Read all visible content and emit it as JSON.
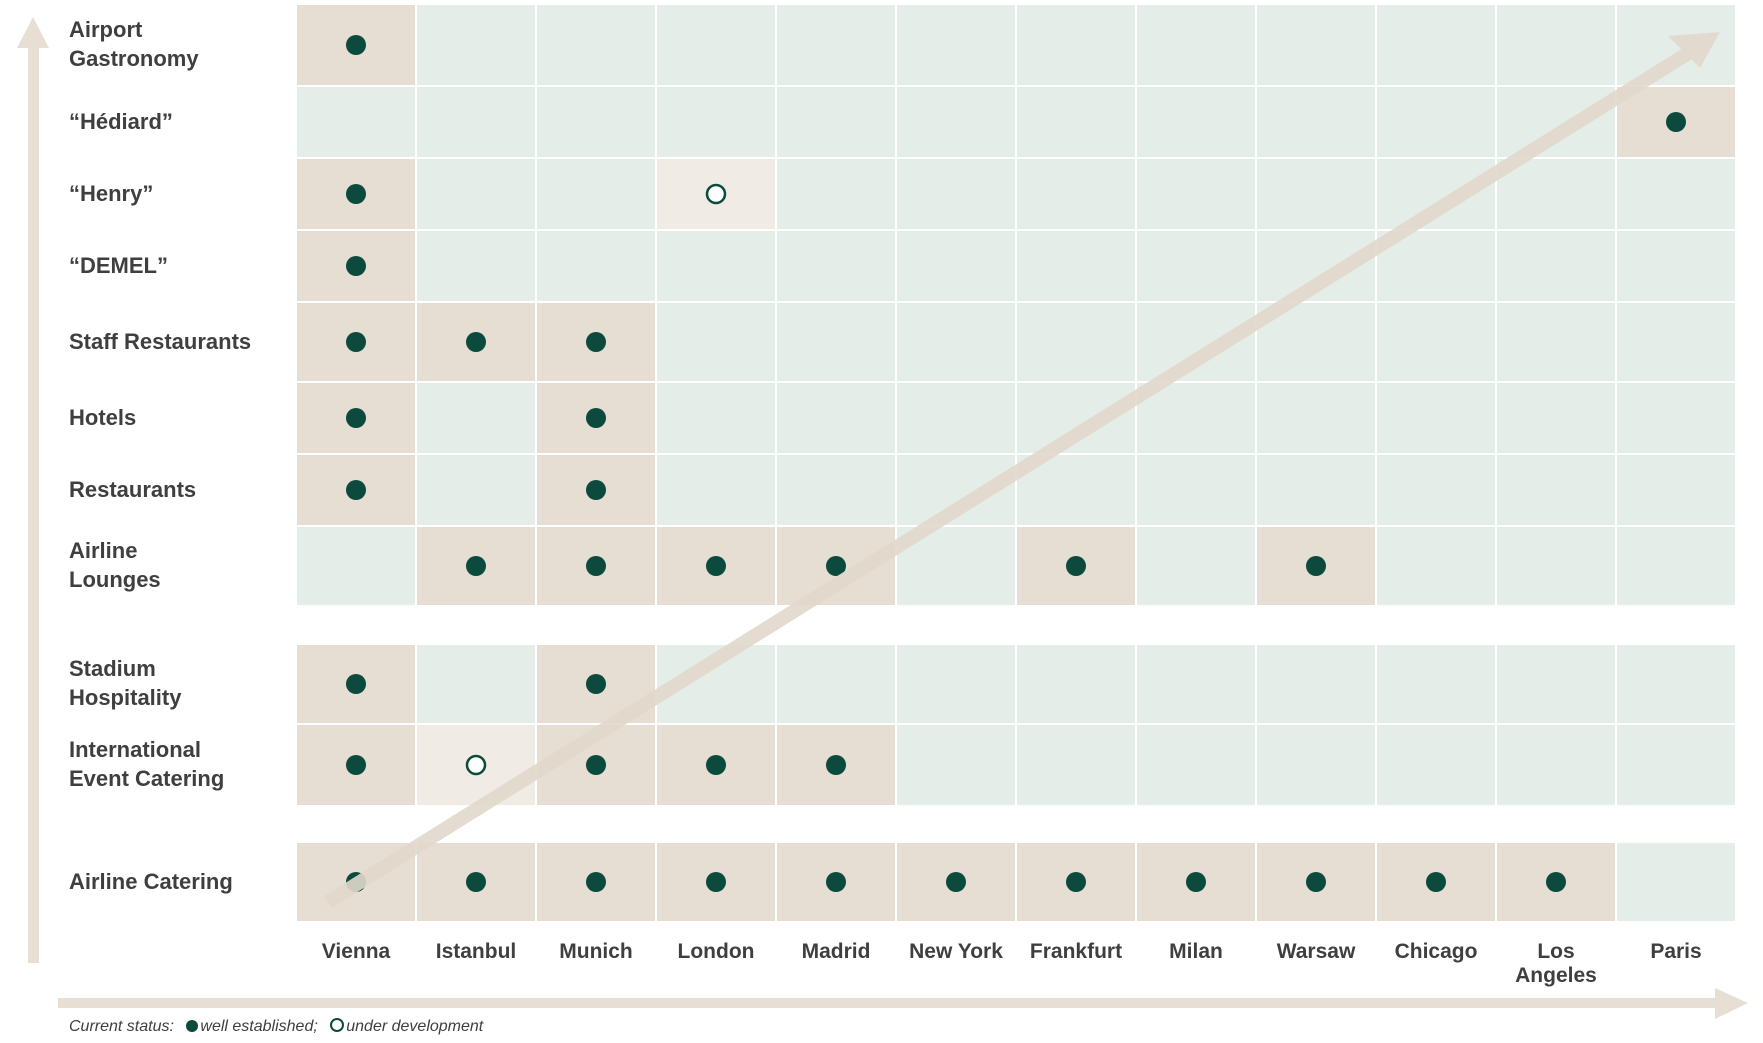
{
  "chart_data": {
    "type": "table",
    "title": "",
    "columns": [
      "Vienna",
      "Istanbul",
      "Munich",
      "London",
      "Madrid",
      "New York",
      "Frankfurt",
      "Milan",
      "Warsaw",
      "Chicago",
      "Los Angeles",
      "Paris"
    ],
    "rows": [
      {
        "label": "Airport\nGastronomy",
        "values": [
          "established",
          "",
          "",
          "",
          "",
          "",
          "",
          "",
          "",
          "",
          "",
          ""
        ]
      },
      {
        "label": "“Hédiard”",
        "values": [
          "",
          "",
          "",
          "",
          "",
          "",
          "",
          "",
          "",
          "",
          "",
          "established"
        ]
      },
      {
        "label": "“Henry”",
        "values": [
          "established",
          "",
          "",
          "development",
          "",
          "",
          "",
          "",
          "",
          "",
          "",
          ""
        ]
      },
      {
        "label": "“DEMEL”",
        "values": [
          "established",
          "",
          "",
          "",
          "",
          "",
          "",
          "",
          "",
          "",
          "",
          ""
        ]
      },
      {
        "label": "Staff Restaurants",
        "values": [
          "established",
          "established",
          "established",
          "",
          "",
          "",
          "",
          "",
          "",
          "",
          "",
          ""
        ]
      },
      {
        "label": "Hotels",
        "values": [
          "established",
          "",
          "established",
          "",
          "",
          "",
          "",
          "",
          "",
          "",
          "",
          ""
        ]
      },
      {
        "label": "Restaurants",
        "values": [
          "established",
          "",
          "established",
          "",
          "",
          "",
          "",
          "",
          "",
          "",
          "",
          ""
        ]
      },
      {
        "label": "Airline\nLounges",
        "values": [
          "",
          "established",
          "established",
          "established",
          "established",
          "",
          "established",
          "",
          "established",
          "",
          "",
          ""
        ]
      },
      {
        "label": "Stadium\nHospitality",
        "values": [
          "established",
          "",
          "established",
          "",
          "",
          "",
          "",
          "",
          "",
          "",
          "",
          ""
        ]
      },
      {
        "label": "International\nEvent Catering",
        "values": [
          "established",
          "development",
          "established",
          "established",
          "established",
          "",
          "",
          "",
          "",
          "",
          "",
          ""
        ]
      },
      {
        "label": "Airline Catering",
        "values": [
          "established",
          "established",
          "established",
          "established",
          "established",
          "established",
          "established",
          "established",
          "established",
          "established",
          "established",
          ""
        ]
      }
    ],
    "grid": false,
    "legend_position": "bottom-left"
  },
  "legend": {
    "prefix": "Current status:",
    "established": "well established;",
    "development": "under development"
  },
  "colors": {
    "empty_cell": "#e4ede8",
    "established_cell": "#e6ded2",
    "development_cell": "#f0ebe4",
    "marker": "#0b4a3c",
    "axis_arrow": "#e7dfd3",
    "text": "#3f3f3f"
  }
}
